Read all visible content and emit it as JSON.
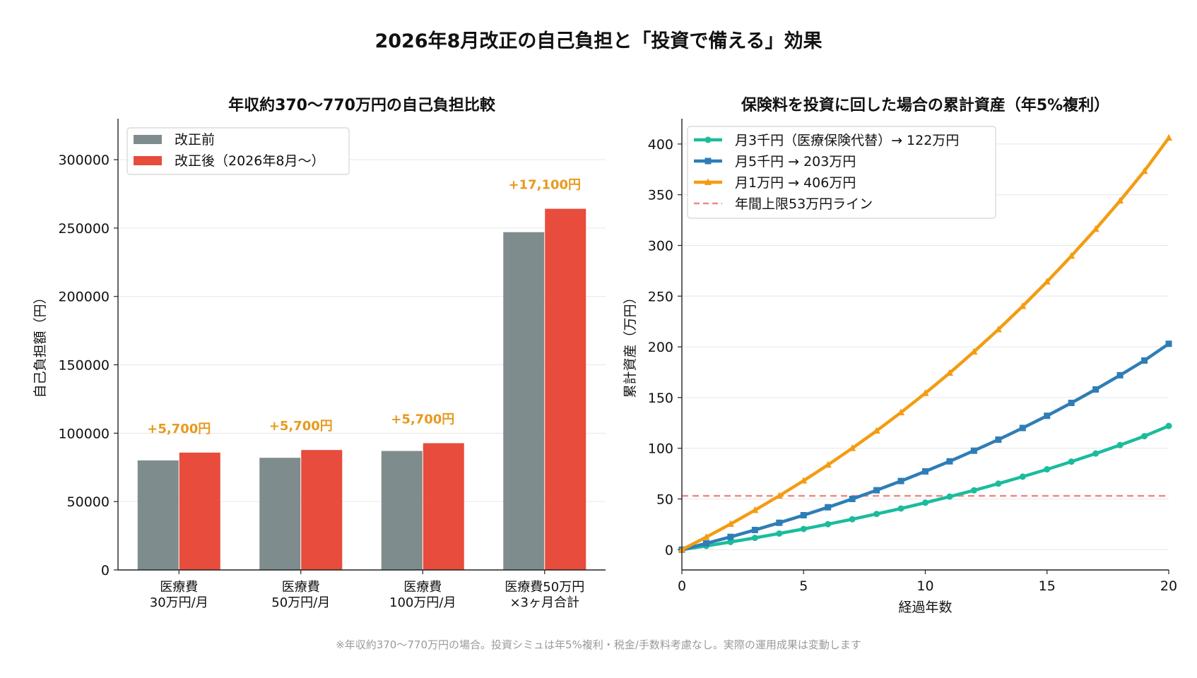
{
  "title": "2026年8月改正の自己負担と「投資で備える」効果",
  "footnote": "※年収約370〜770万円の場合。投資シミュは年5%複利・税金/手数料考慮なし。実際の運用成果は変動します",
  "chart_data": [
    {
      "type": "bar",
      "title": "年収約370〜770万円の自己負担比較",
      "xlabel": "",
      "ylabel": "自己負担額（円）",
      "ylim": [
        0,
        330000
      ],
      "yticks": [
        0,
        50000,
        100000,
        150000,
        200000,
        250000,
        300000
      ],
      "categories": [
        [
          "医療費",
          "30万円/月"
        ],
        [
          "医療費",
          "50万円/月"
        ],
        [
          "医療費",
          "100万円/月"
        ],
        [
          "医療費50万円",
          "×3ヶ月合計"
        ]
      ],
      "series": [
        {
          "name": "改正前",
          "color": "#7f8c8d",
          "values": [
            80100,
            82000,
            87000,
            247000
          ]
        },
        {
          "name": "改正後（2026年8月〜）",
          "color": "#e74c3c",
          "values": [
            85800,
            87700,
            92700,
            264100
          ]
        }
      ],
      "annotations": [
        "+5,700円",
        "+5,700円",
        "+5,700円",
        "+17,100円"
      ],
      "annotation_color": "#e89a1e",
      "grid": "y",
      "legend": "top-left"
    },
    {
      "type": "line",
      "title": "保険料を投資に回した場合の累計資産（年5%複利）",
      "xlabel": "経過年数",
      "ylabel": "累計資産（万円）",
      "xlim": [
        0,
        20
      ],
      "ylim": [
        -20,
        425
      ],
      "xticks": [
        0,
        5,
        10,
        15,
        20
      ],
      "yticks": [
        0,
        50,
        100,
        150,
        200,
        250,
        300,
        350,
        400
      ],
      "x": [
        0,
        1,
        2,
        3,
        4,
        5,
        6,
        7,
        8,
        9,
        10,
        11,
        12,
        13,
        14,
        15,
        16,
        17,
        18,
        19,
        20
      ],
      "series": [
        {
          "name": "月3千円（医療保険代替）→ 122万円",
          "color": "#1abc9c",
          "marker": "circle",
          "values": [
            0,
            3.7,
            7.6,
            11.6,
            15.9,
            20.4,
            25.1,
            30.0,
            35.2,
            40.6,
            46.3,
            52.3,
            58.5,
            65.1,
            72.0,
            79.2,
            86.8,
            94.8,
            103.1,
            111.9,
            122.0
          ]
        },
        {
          "name": "月5千円 → 203万円",
          "color": "#2e7db6",
          "marker": "square",
          "values": [
            0,
            6.2,
            12.6,
            19.4,
            26.5,
            34.0,
            41.8,
            50.0,
            58.6,
            67.7,
            77.2,
            87.1,
            97.6,
            108.5,
            120.0,
            132.0,
            144.7,
            158.0,
            172.0,
            186.5,
            203.0
          ]
        },
        {
          "name": "月1万円 → 406万円",
          "color": "#f39c12",
          "marker": "triangle",
          "values": [
            0,
            12.3,
            25.3,
            38.9,
            53.1,
            68.0,
            83.6,
            100.0,
            117.2,
            135.3,
            154.3,
            174.2,
            195.2,
            217.1,
            240.1,
            264.3,
            289.6,
            316.1,
            344.0,
            373.3,
            406.0
          ]
        }
      ],
      "hline": {
        "name": "年間上限53万円ライン",
        "y": 53,
        "color": "#ec8a85"
      },
      "grid": "y",
      "legend": "top-left"
    }
  ]
}
